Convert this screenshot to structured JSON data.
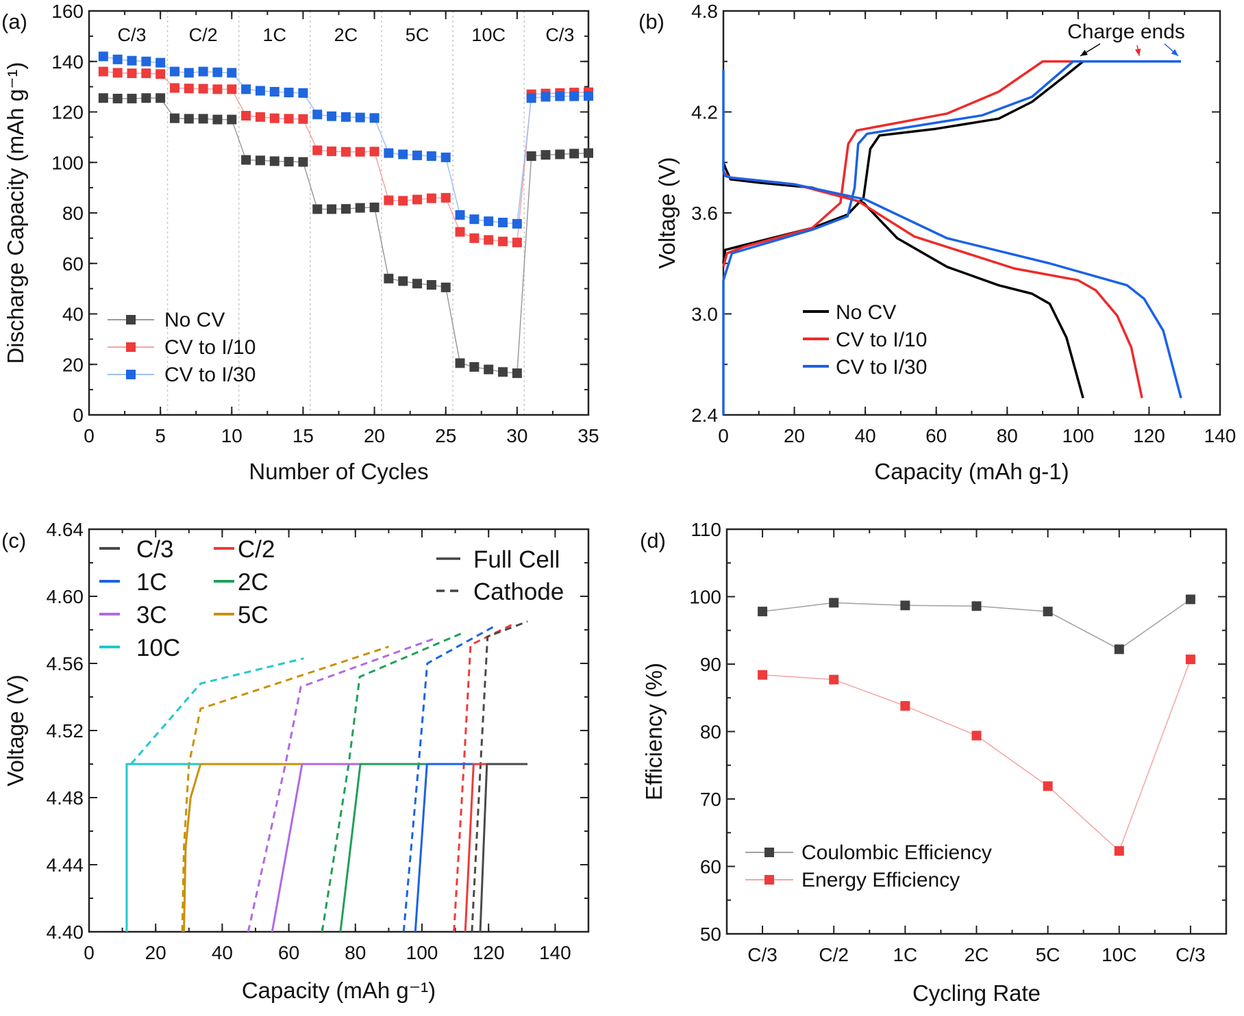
{
  "chart_data": [
    {
      "panel": "(a)",
      "type": "line",
      "xlabel": "Number of Cycles",
      "ylabel": "Discharge Capacity (mAh g⁻¹)",
      "xlim": [
        0,
        35
      ],
      "ylim": [
        0,
        160
      ],
      "xticks": [
        0,
        5,
        10,
        15,
        20,
        25,
        30,
        35
      ],
      "xtick_labels": [
        "0",
        "5",
        "10",
        "15",
        "20",
        "25",
        "30",
        "35"
      ],
      "yticks": [
        0,
        20,
        40,
        60,
        80,
        100,
        120,
        140,
        160
      ],
      "ytick_labels": [
        "0",
        "20",
        "40",
        "60",
        "80",
        "100",
        "120",
        "140",
        "160"
      ],
      "rate_labels": [
        "C/3",
        "C/2",
        "1C",
        "2C",
        "5C",
        "10C",
        "C/3"
      ],
      "rate_dividers": [
        5.5,
        10.5,
        15.5,
        20.5,
        25.5,
        30.5
      ],
      "legend_position": "bottom-left",
      "x": [
        1,
        2,
        3,
        4,
        5,
        6,
        7,
        8,
        9,
        10,
        11,
        12,
        13,
        14,
        15,
        16,
        17,
        18,
        19,
        20,
        21,
        22,
        23,
        24,
        25,
        26,
        27,
        28,
        29,
        30,
        31,
        32,
        33,
        34,
        35
      ],
      "series": [
        {
          "name": "No CV",
          "color": "#404040",
          "line_color": "#9a9a9a",
          "values": [
            125.5,
            125.3,
            125.3,
            125.5,
            125.5,
            117.5,
            117.3,
            117.3,
            117,
            117,
            101,
            100.8,
            100.5,
            100.3,
            100.2,
            81.5,
            81.5,
            81.6,
            82,
            82.2,
            54,
            53,
            52,
            51.5,
            50.5,
            20.5,
            19,
            18,
            17,
            16.5,
            102.5,
            103,
            103.2,
            103.5,
            103.7
          ]
        },
        {
          "name": "CV to I/10",
          "color": "#ee3b3b",
          "line_color": "#f5a3a3",
          "values": [
            136,
            135.5,
            135.3,
            135.3,
            135,
            129.5,
            129.3,
            129.2,
            129,
            129,
            118.5,
            118,
            117.5,
            117.3,
            117.2,
            104.8,
            104.4,
            104.2,
            104.2,
            104.3,
            85,
            84.8,
            85.3,
            85.8,
            86,
            72.5,
            70,
            69.3,
            68.7,
            68.3,
            127,
            127.3,
            127.5,
            127.7,
            127.8
          ]
        },
        {
          "name": "CV to I/30",
          "color": "#1f66e0",
          "line_color": "#9fc0f2",
          "values": [
            142,
            140.8,
            140.3,
            140,
            139.5,
            136,
            135.5,
            136,
            135.7,
            135.5,
            129,
            128.4,
            128,
            127.7,
            127.5,
            119,
            118.3,
            118,
            117.8,
            117.6,
            103.7,
            103.2,
            102.8,
            102.5,
            102,
            79.2,
            77.5,
            76.7,
            76.2,
            75.7,
            125.5,
            126,
            126.2,
            126.2,
            126.3
          ]
        }
      ]
    },
    {
      "panel": "(b)",
      "type": "line",
      "xlabel": "Capacity (mAh g-1)",
      "ylabel": "Voltage (V)",
      "xlim": [
        0,
        140
      ],
      "ylim": [
        2.4,
        4.8
      ],
      "xticks": [
        0,
        20,
        40,
        60,
        80,
        100,
        120,
        140
      ],
      "xtick_labels": [
        "0",
        "20",
        "40",
        "60",
        "80",
        "100",
        "120",
        "140"
      ],
      "yticks": [
        2.4,
        3.0,
        3.6,
        4.2,
        4.8
      ],
      "ytick_labels": [
        "2.4",
        "3.0",
        "3.6",
        "4.2",
        "4.8"
      ],
      "annotation": "Charge ends",
      "annotation_targets": [
        101.4,
        118,
        129
      ],
      "legend_position": "lower-left",
      "series": [
        {
          "name": "No CV",
          "color": "#000000",
          "charge": [
            [
              0,
              3.3
            ],
            [
              0.5,
              3.38
            ],
            [
              6,
              3.41
            ],
            [
              25,
              3.51
            ],
            [
              35,
              3.59
            ],
            [
              39.5,
              3.69
            ],
            [
              41.4,
              3.98
            ],
            [
              44,
              4.06
            ],
            [
              60,
              4.1
            ],
            [
              77.6,
              4.16
            ],
            [
              87,
              4.26
            ],
            [
              96.7,
              4.42
            ],
            [
              101.4,
              4.5
            ]
          ],
          "discharge": [
            [
              0,
              3.9
            ],
            [
              0.5,
              3.87
            ],
            [
              2,
              3.8
            ],
            [
              10,
              3.78
            ],
            [
              25,
              3.75
            ],
            [
              39.5,
              3.66
            ],
            [
              44,
              3.56
            ],
            [
              49,
              3.45
            ],
            [
              63,
              3.28
            ],
            [
              77.6,
              3.17
            ],
            [
              87,
              3.12
            ],
            [
              92,
              3.06
            ],
            [
              96.7,
              2.86
            ],
            [
              101.4,
              2.5
            ]
          ]
        },
        {
          "name": "CV to I/10",
          "color": "#ee2a2a",
          "charge": [
            [
              0,
              3.28
            ],
            [
              1,
              3.36
            ],
            [
              6,
              3.4
            ],
            [
              25,
              3.51
            ],
            [
              33,
              3.66
            ],
            [
              35.2,
              4.01
            ],
            [
              37.6,
              4.09
            ],
            [
              63,
              4.19
            ],
            [
              77.6,
              4.32
            ],
            [
              90,
              4.5
            ],
            [
              118,
              4.5
            ]
          ],
          "discharge": [
            [
              0,
              3.85
            ],
            [
              0.5,
              3.83
            ],
            [
              2,
              3.81
            ],
            [
              20,
              3.77
            ],
            [
              38,
              3.67
            ],
            [
              53.8,
              3.46
            ],
            [
              82,
              3.27
            ],
            [
              100,
              3.2
            ],
            [
              105,
              3.14
            ],
            [
              111,
              2.99
            ],
            [
              115,
              2.8
            ],
            [
              118,
              2.5
            ]
          ]
        },
        {
          "name": "CV to I/30",
          "color": "#1a62e6",
          "charge": [
            [
              0,
              2.4
            ],
            [
              0,
              3.2
            ],
            [
              2.4,
              3.36
            ],
            [
              25,
              3.5
            ],
            [
              35,
              3.58
            ],
            [
              37,
              3.75
            ],
            [
              38,
              4.01
            ],
            [
              40.5,
              4.07
            ],
            [
              73,
              4.18
            ],
            [
              87,
              4.29
            ],
            [
              98.6,
              4.5
            ],
            [
              129,
              4.5
            ]
          ],
          "discharge": [
            [
              0,
              4.45
            ],
            [
              0,
              3.85
            ],
            [
              0.5,
              3.82
            ],
            [
              2,
              3.81
            ],
            [
              20,
              3.77
            ],
            [
              40,
              3.68
            ],
            [
              63,
              3.45
            ],
            [
              92,
              3.3
            ],
            [
              113.8,
              3.17
            ],
            [
              118.6,
              3.09
            ],
            [
              124,
              2.9
            ],
            [
              129,
              2.5
            ]
          ]
        }
      ]
    },
    {
      "panel": "(c)",
      "type": "line",
      "xlabel": "Capacity (mAh g⁻¹)",
      "ylabel": "Voltage (V)",
      "xlim": [
        0,
        150
      ],
      "ylim": [
        4.4,
        4.64
      ],
      "xticks": [
        0,
        20,
        40,
        60,
        80,
        100,
        120,
        140
      ],
      "xtick_labels": [
        "0",
        "20",
        "40",
        "60",
        "80",
        "100",
        "120",
        "140"
      ],
      "yticks": [
        4.4,
        4.44,
        4.48,
        4.52,
        4.56,
        4.6,
        4.64
      ],
      "ytick_labels": [
        "4.40",
        "4.44",
        "4.48",
        "4.52",
        "4.56",
        "4.60",
        "4.64"
      ],
      "style_legend": [
        "Full Cell",
        "Cathode"
      ],
      "legend_position": "top-left",
      "series": [
        {
          "name": "C/3",
          "color": "#4a4a4a",
          "full_cell": [
            [
              117.5,
              4.4
            ],
            [
              119.5,
              4.5
            ],
            [
              131.7,
              4.5
            ]
          ],
          "cathode": [
            [
              115,
              4.4
            ],
            [
              117.6,
              4.5
            ],
            [
              119.7,
              4.576
            ],
            [
              131.7,
              4.585
            ]
          ]
        },
        {
          "name": "C/2",
          "color": "#f03a3a",
          "full_cell": [
            [
              113,
              4.4
            ],
            [
              115.5,
              4.5
            ],
            [
              129,
              4.5
            ]
          ],
          "cathode": [
            [
              109.6,
              4.4
            ],
            [
              112.6,
              4.5
            ],
            [
              114.6,
              4.571
            ],
            [
              128,
              4.584
            ]
          ]
        },
        {
          "name": "1C",
          "color": "#1a62e6",
          "full_cell": [
            [
              98,
              4.4
            ],
            [
              101.5,
              4.5
            ],
            [
              122.5,
              4.5
            ]
          ],
          "cathode": [
            [
              94.5,
              4.4
            ],
            [
              99,
              4.5
            ],
            [
              101.6,
              4.56
            ],
            [
              121.6,
              4.582
            ]
          ]
        },
        {
          "name": "2C",
          "color": "#20a058",
          "full_cell": [
            [
              75.5,
              4.4
            ],
            [
              81.5,
              4.5
            ],
            [
              112,
              4.5
            ]
          ],
          "cathode": [
            [
              70,
              4.4
            ],
            [
              78,
              4.5
            ],
            [
              81.3,
              4.552
            ],
            [
              112,
              4.578
            ]
          ]
        },
        {
          "name": "3C",
          "color": "#b06ae6",
          "full_cell": [
            [
              55,
              4.4
            ],
            [
              64,
              4.5
            ],
            [
              104.7,
              4.5
            ]
          ],
          "cathode": [
            [
              47.8,
              4.4
            ],
            [
              59,
              4.5
            ],
            [
              63.6,
              4.546
            ],
            [
              104,
              4.575
            ]
          ]
        },
        {
          "name": "5C",
          "color": "#c8920a",
          "full_cell": [
            [
              28.5,
              4.4
            ],
            [
              29,
              4.45
            ],
            [
              30.5,
              4.48
            ],
            [
              33.5,
              4.5
            ],
            [
              92.5,
              4.5
            ]
          ],
          "cathode": [
            [
              28,
              4.4
            ],
            [
              28.5,
              4.45
            ],
            [
              30,
              4.5
            ],
            [
              33.5,
              4.533
            ],
            [
              90,
              4.57
            ]
          ]
        },
        {
          "name": "10C",
          "color": "#22c8cc",
          "full_cell": [
            [
              11.3,
              4.4
            ],
            [
              11.3,
              4.5
            ],
            [
              65,
              4.5
            ]
          ],
          "cathode": [
            [
              12.6,
              4.5
            ],
            [
              33.5,
              4.548
            ],
            [
              64.5,
              4.563
            ]
          ]
        }
      ]
    },
    {
      "panel": "(d)",
      "type": "line",
      "xlabel": "Cycling Rate",
      "ylabel": "Efficiency (%)",
      "categories": [
        "C/3",
        "C/2",
        "1C",
        "2C",
        "5C",
        "10C",
        "C/3"
      ],
      "ylim": [
        50,
        110
      ],
      "yticks": [
        50,
        60,
        70,
        80,
        90,
        100,
        110
      ],
      "ytick_labels": [
        "50",
        "60",
        "70",
        "80",
        "90",
        "100",
        "110"
      ],
      "legend_position": "bottom-left",
      "series": [
        {
          "name": "Coulombic Efficiency",
          "color": "#404040",
          "line_color": "#a0a0a0",
          "values": [
            97.8,
            99.1,
            98.7,
            98.6,
            97.8,
            92.2,
            99.6
          ]
        },
        {
          "name": "Energy Efficiency",
          "color": "#ee3b3b",
          "line_color": "#f5a3a3",
          "values": [
            88.4,
            87.7,
            83.8,
            79.4,
            71.9,
            62.3,
            90.7
          ]
        }
      ]
    }
  ]
}
